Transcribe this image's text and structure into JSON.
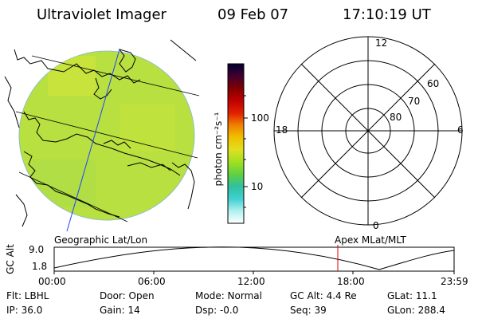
{
  "header": {
    "title": "Ultraviolet Imager",
    "date": "09 Feb 07",
    "time": "17:10:19 UT"
  },
  "colorbar": {
    "unit_label": "photon cm⁻²s⁻¹",
    "tick_100": "100",
    "tick_10": "10",
    "stops": [
      "#ffffff",
      "#b0f0f0",
      "#40d0d0",
      "#30c0a0",
      "#60d040",
      "#a0e020",
      "#e0e020",
      "#f0c000",
      "#f08000",
      "#e02000",
      "#c00000",
      "#800000",
      "#400030",
      "#000030"
    ]
  },
  "map": {
    "caption": "Geographic Lat/Lon",
    "fill": "#b8e040"
  },
  "polar": {
    "caption": "Apex MLat/MLT",
    "label_top": "12",
    "label_bottom": "0",
    "label_left": "18",
    "label_right": "6",
    "ring_60": "60",
    "ring_70": "70",
    "ring_80": "80"
  },
  "altitude_plot": {
    "ylabel": "GC Alt",
    "y_high": "9.0",
    "y_low": "1.8",
    "x_ticks": [
      "00:00",
      "06:00",
      "12:00",
      "18:00",
      "23:59"
    ],
    "marker_color": "#e00000"
  },
  "status": {
    "filter": "Flt: LBHL",
    "door": "Door: Open",
    "mode": "Mode: Normal",
    "gc_alt": "GC Alt: 4.4 Re",
    "glat": "GLat:  11.1",
    "ip": "IP: 36.0",
    "gain": "Gain: 14",
    "dsp": "Dsp:   -0.0",
    "seq": "Seq: 39",
    "glon": "GLon: 288.4"
  }
}
